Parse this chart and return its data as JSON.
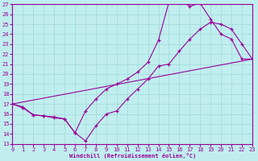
{
  "bg_color": "#c0eeee",
  "grid_color": "#a0d8d8",
  "line_color": "#990099",
  "xlabel": "Windchill (Refroidissement éolien,°C)",
  "xlim": [
    0,
    23
  ],
  "ylim": [
    13,
    27
  ],
  "ytick_vals": [
    13,
    14,
    15,
    16,
    17,
    18,
    19,
    20,
    21,
    22,
    23,
    24,
    25,
    26,
    27
  ],
  "xtick_vals": [
    0,
    1,
    2,
    3,
    4,
    5,
    6,
    7,
    8,
    9,
    10,
    11,
    12,
    13,
    14,
    15,
    16,
    17,
    18,
    19,
    20,
    21,
    22,
    23
  ],
  "curve1_x": [
    0,
    1,
    2,
    3,
    4,
    5,
    6,
    7,
    8,
    9,
    10,
    11,
    12,
    13,
    14,
    15,
    16,
    17,
    18,
    19,
    20,
    21,
    22,
    23
  ],
  "curve1_y": [
    17.0,
    16.7,
    15.9,
    15.8,
    15.6,
    15.5,
    14.1,
    13.3,
    14.8,
    16.0,
    16.3,
    17.5,
    18.5,
    19.5,
    20.8,
    21.0,
    22.3,
    23.5,
    24.5,
    25.2,
    25.0,
    24.5,
    23.0,
    21.5
  ],
  "curve2_x": [
    0,
    1,
    2,
    3,
    4,
    5,
    6,
    7,
    8,
    9,
    10,
    11,
    12,
    13,
    14,
    15,
    16,
    17,
    18,
    19,
    20,
    21,
    22,
    23
  ],
  "curve2_y": [
    17.0,
    16.6,
    15.9,
    15.8,
    15.7,
    15.5,
    14.1,
    16.3,
    17.5,
    18.5,
    19.0,
    19.5,
    20.2,
    21.2,
    23.4,
    27.2,
    27.4,
    26.8,
    27.1,
    25.5,
    24.0,
    23.5,
    21.5,
    21.5
  ],
  "line3_x": [
    0,
    23
  ],
  "line3_y": [
    17.0,
    21.5
  ]
}
